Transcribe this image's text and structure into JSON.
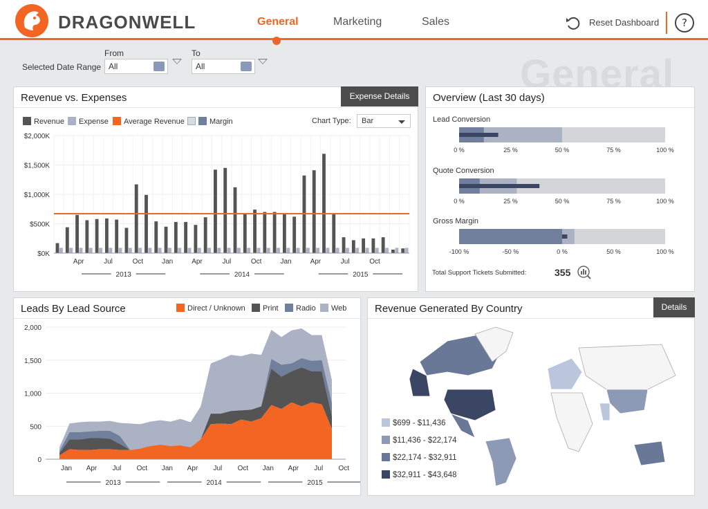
{
  "app": {
    "brand": "DRAGONWELL",
    "accent": "#f26522"
  },
  "nav": {
    "tabs": [
      {
        "label": "General",
        "active": true
      },
      {
        "label": "Marketing"
      },
      {
        "label": "Sales"
      }
    ],
    "reset_label": "Reset Dashboard",
    "help_label": "?"
  },
  "page": {
    "watermark": "General"
  },
  "filters": {
    "label": "Selected Date Range",
    "from_label": "From",
    "to_label": "To",
    "from_value": "All",
    "to_value": "All"
  },
  "revenue": {
    "title": "Revenue vs. Expenses",
    "button": "Expense Details",
    "chart_type_label": "Chart Type:",
    "chart_type_value": "Bar",
    "chart_data": {
      "type": "bar",
      "series": [
        {
          "name": "Revenue",
          "color": "#545454",
          "values": [
            170,
            440,
            650,
            560,
            580,
            590,
            570,
            430,
            1170,
            990,
            540,
            450,
            530,
            530,
            480,
            610,
            1420,
            1450,
            1120,
            660,
            740,
            700,
            700,
            680,
            620,
            1320,
            1410,
            1690,
            680,
            270,
            220,
            250,
            250,
            270,
            60,
            80
          ]
        },
        {
          "name": "Expense",
          "color": "#aab2c4",
          "values": [
            90,
            90,
            90,
            90,
            90,
            90,
            90,
            90,
            90,
            90,
            90,
            90,
            90,
            90,
            90,
            90,
            90,
            90,
            90,
            90,
            90,
            90,
            90,
            90,
            90,
            90,
            90,
            90,
            90,
            90,
            90,
            90,
            90,
            90,
            90,
            90
          ]
        },
        {
          "name": "Average Revenue",
          "color": "#f26522",
          "value": 670
        },
        {
          "name": "Margin",
          "color": "#6f7f9c"
        }
      ],
      "yticks": [
        "$2,000K",
        "$1,500K",
        "$1,000K",
        "$500K",
        "$0K"
      ],
      "ylim": [
        0,
        2000
      ],
      "xticks": [
        "Apr",
        "Jul",
        "Oct",
        "Jan",
        "Apr",
        "Jul",
        "Oct",
        "Jan",
        "Apr",
        "Jul",
        "Oct"
      ],
      "xtick_index": [
        2,
        5,
        8,
        11,
        14,
        17,
        20,
        23,
        26,
        29,
        32
      ],
      "years": [
        "2013",
        "2014",
        "2015"
      ]
    }
  },
  "overview": {
    "title": "Overview (Last 30 days)",
    "bullets": [
      {
        "label": "Lead Conversion",
        "ticks": [
          "0 %",
          "25 %",
          "50 %",
          "75 %",
          "100 %"
        ],
        "min": 0,
        "max": 100,
        "band1": 12,
        "band2": 50,
        "value": 19
      },
      {
        "label": "Quote Conversion",
        "ticks": [
          "0 %",
          "25 %",
          "50 %",
          "75 %",
          "100 %"
        ],
        "min": 0,
        "max": 100,
        "band1": 10,
        "band2": 28,
        "value": 39
      },
      {
        "label": "Gross Margin",
        "ticks": [
          "-100 %",
          "-50 %",
          "0 %",
          "50 %",
          "100 %"
        ],
        "min": -100,
        "max": 100,
        "band1": 0,
        "band2": 12,
        "value": 5
      }
    ],
    "tickets_label": "Total Support Tickets Submitted:",
    "tickets_value": "355"
  },
  "leads": {
    "title": "Leads By Lead Source",
    "chart_data": {
      "type": "area",
      "series": [
        {
          "name": "Direct / Unknown",
          "color": "#f26522",
          "values": [
            60,
            150,
            140,
            140,
            150,
            150,
            140,
            140,
            160,
            200,
            220,
            200,
            210,
            180,
            300,
            530,
            540,
            530,
            600,
            570,
            620,
            820,
            760,
            860,
            800,
            860,
            830,
            460
          ]
        },
        {
          "name": "Print",
          "color": "#545454",
          "values": [
            30,
            150,
            160,
            180,
            170,
            160,
            90,
            0,
            0,
            0,
            0,
            0,
            0,
            0,
            0,
            160,
            150,
            200,
            140,
            180,
            180,
            550,
            490,
            470,
            590,
            470,
            500,
            190
          ]
        },
        {
          "name": "Radio",
          "color": "#6f7f9c",
          "values": [
            30,
            110,
            110,
            100,
            110,
            120,
            120,
            0,
            0,
            0,
            0,
            0,
            0,
            0,
            0,
            0,
            0,
            0,
            0,
            0,
            0,
            150,
            180,
            120,
            140,
            160,
            170,
            200
          ]
        },
        {
          "name": "Web",
          "color": "#aab2c4",
          "values": [
            60,
            130,
            150,
            150,
            140,
            150,
            200,
            400,
            370,
            370,
            370,
            370,
            400,
            380,
            500,
            760,
            820,
            850,
            820,
            850,
            780,
            440,
            420,
            500,
            450,
            390,
            380,
            350
          ]
        }
      ],
      "yticks": [
        "2,000",
        "1,500",
        "1,000",
        "500",
        "0"
      ],
      "ylim": [
        0,
        2000
      ],
      "xticks": [
        "Jan",
        "Apr",
        "Jul",
        "Oct",
        "Jan",
        "Apr",
        "Jul",
        "Oct",
        "Jan",
        "Apr",
        "Jul",
        "Oct"
      ],
      "xtick_index": [
        0,
        2.5,
        5,
        7.5,
        10,
        12.5,
        15,
        17.5,
        20,
        22.5,
        25,
        27.5
      ],
      "years": [
        "2013",
        "2014",
        "2015"
      ]
    }
  },
  "country": {
    "title": "Revenue Generated By Country",
    "button": "Details",
    "legend": [
      {
        "label": "$699 - $11,436",
        "color": "#b9c6dc"
      },
      {
        "label": "$11,436 - $22,174",
        "color": "#8c9ab5"
      },
      {
        "label": "$22,174 - $32,911",
        "color": "#6a7898"
      },
      {
        "label": "$32,911 - $43,648",
        "color": "#3a4663"
      }
    ]
  }
}
